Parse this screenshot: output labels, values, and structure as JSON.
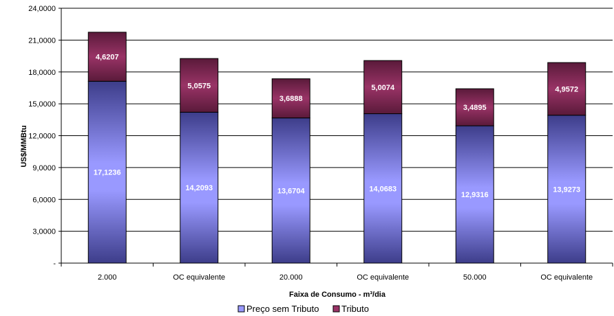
{
  "chart_data": {
    "type": "bar",
    "stacked": true,
    "categories": [
      "2.000",
      "OC equivalente",
      "20.000",
      "OC equivalente",
      "50.000",
      "OC equivalente"
    ],
    "series": [
      {
        "name": "Preço sem Tributo",
        "values": [
          17.1236,
          14.2093,
          13.6704,
          14.0683,
          12.9316,
          13.9273
        ],
        "labels": [
          "17,1236",
          "14,2093",
          "13,6704",
          "14,0683",
          "12,9316",
          "13,9273"
        ],
        "color": "#9999ff"
      },
      {
        "name": "Tributo",
        "values": [
          4.6207,
          5.0575,
          3.6888,
          5.0074,
          3.4895,
          4.9572
        ],
        "labels": [
          "4,6207",
          "5,0575",
          "3,6888",
          "5,0074",
          "3,4895",
          "4,9572"
        ],
        "color": "#993366"
      }
    ],
    "yticks": [
      0,
      3,
      6,
      9,
      12,
      15,
      18,
      21,
      24
    ],
    "ytick_labels": [
      "-",
      "3,0000",
      "6,0000",
      "9,0000",
      "12,0000",
      "15,0000",
      "18,0000",
      "21,0000",
      "24,0000"
    ],
    "ylim": [
      0,
      24
    ],
    "xlabel": "Faixa de Consumo - m³/dia",
    "ylabel": "US$/MMBtu",
    "grid": true,
    "legend_position": "bottom"
  }
}
